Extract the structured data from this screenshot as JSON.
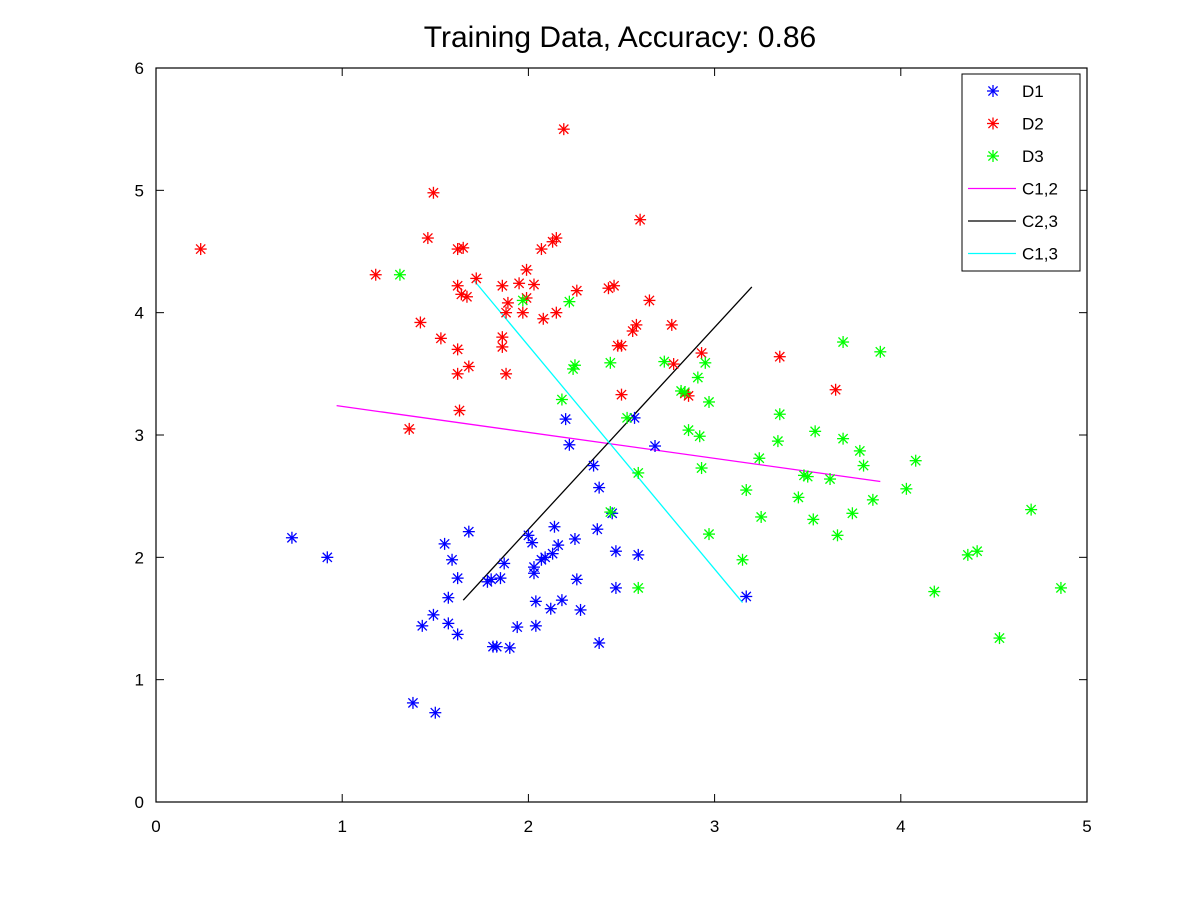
{
  "chart_data": {
    "type": "scatter",
    "title": "Training Data, Accuracy: 0.86",
    "xlabel": "",
    "ylabel": "",
    "xlim": [
      0,
      5
    ],
    "ylim": [
      0,
      6
    ],
    "xticks": [
      0,
      1,
      2,
      3,
      4,
      5
    ],
    "yticks": [
      0,
      1,
      2,
      3,
      4,
      5,
      6
    ],
    "grid": false,
    "legend_position": "top-right",
    "series": [
      {
        "name": "D1",
        "kind": "points",
        "marker": "asterisk",
        "color": "#0000ff",
        "points": [
          [
            0.73,
            2.16
          ],
          [
            0.92,
            2.0
          ],
          [
            1.38,
            0.81
          ],
          [
            1.43,
            1.44
          ],
          [
            1.5,
            0.73
          ],
          [
            1.49,
            1.53
          ],
          [
            1.55,
            2.11
          ],
          [
            1.57,
            1.67
          ],
          [
            1.57,
            1.46
          ],
          [
            1.59,
            1.98
          ],
          [
            1.62,
            1.83
          ],
          [
            1.62,
            1.37
          ],
          [
            1.68,
            2.21
          ],
          [
            1.78,
            1.8
          ],
          [
            1.8,
            1.82
          ],
          [
            1.81,
            1.27
          ],
          [
            1.83,
            1.27
          ],
          [
            1.85,
            1.83
          ],
          [
            1.87,
            1.95
          ],
          [
            1.9,
            1.26
          ],
          [
            1.94,
            1.43
          ],
          [
            2.0,
            2.18
          ],
          [
            2.02,
            2.12
          ],
          [
            2.03,
            1.92
          ],
          [
            2.03,
            1.87
          ],
          [
            2.04,
            1.64
          ],
          [
            2.04,
            1.44
          ],
          [
            2.07,
            1.98
          ],
          [
            2.09,
            2.0
          ],
          [
            2.12,
            1.58
          ],
          [
            2.13,
            2.03
          ],
          [
            2.14,
            2.25
          ],
          [
            2.16,
            2.1
          ],
          [
            2.18,
            1.65
          ],
          [
            2.2,
            3.13
          ],
          [
            2.22,
            2.92
          ],
          [
            2.25,
            2.15
          ],
          [
            2.26,
            1.82
          ],
          [
            2.28,
            1.57
          ],
          [
            2.35,
            2.75
          ],
          [
            2.37,
            2.23
          ],
          [
            2.38,
            2.57
          ],
          [
            2.38,
            1.3
          ],
          [
            2.45,
            2.36
          ],
          [
            2.47,
            2.05
          ],
          [
            2.47,
            1.75
          ],
          [
            2.57,
            3.14
          ],
          [
            2.59,
            2.02
          ],
          [
            2.68,
            2.91
          ],
          [
            3.17,
            1.68
          ]
        ]
      },
      {
        "name": "D2",
        "kind": "points",
        "marker": "asterisk",
        "color": "#ff0000",
        "points": [
          [
            0.24,
            4.52
          ],
          [
            1.18,
            4.31
          ],
          [
            1.36,
            3.05
          ],
          [
            1.42,
            3.92
          ],
          [
            1.46,
            4.61
          ],
          [
            1.49,
            4.98
          ],
          [
            1.53,
            3.79
          ],
          [
            1.62,
            4.52
          ],
          [
            1.62,
            4.22
          ],
          [
            1.62,
            3.7
          ],
          [
            1.62,
            3.5
          ],
          [
            1.63,
            3.2
          ],
          [
            1.64,
            4.15
          ],
          [
            1.65,
            4.53
          ],
          [
            1.67,
            4.13
          ],
          [
            1.68,
            3.56
          ],
          [
            1.72,
            4.28
          ],
          [
            1.86,
            4.22
          ],
          [
            1.86,
            3.8
          ],
          [
            1.86,
            3.72
          ],
          [
            1.88,
            4.0
          ],
          [
            1.88,
            3.5
          ],
          [
            1.89,
            4.08
          ],
          [
            1.95,
            4.24
          ],
          [
            1.97,
            4.0
          ],
          [
            1.99,
            4.12
          ],
          [
            1.99,
            4.35
          ],
          [
            2.03,
            4.23
          ],
          [
            2.07,
            4.52
          ],
          [
            2.08,
            3.95
          ],
          [
            2.13,
            4.58
          ],
          [
            2.15,
            4.61
          ],
          [
            2.15,
            4.0
          ],
          [
            2.19,
            5.5
          ],
          [
            2.26,
            4.18
          ],
          [
            2.43,
            4.2
          ],
          [
            2.46,
            4.22
          ],
          [
            2.48,
            3.73
          ],
          [
            2.5,
            3.73
          ],
          [
            2.5,
            3.33
          ],
          [
            2.56,
            3.85
          ],
          [
            2.58,
            3.9
          ],
          [
            2.6,
            4.76
          ],
          [
            2.65,
            4.1
          ],
          [
            2.77,
            3.9
          ],
          [
            2.78,
            3.58
          ],
          [
            2.84,
            3.34
          ],
          [
            2.86,
            3.32
          ],
          [
            2.93,
            3.67
          ],
          [
            3.35,
            3.64
          ],
          [
            3.65,
            3.37
          ]
        ]
      },
      {
        "name": "D3",
        "kind": "points",
        "marker": "asterisk",
        "color": "#00ff00",
        "points": [
          [
            1.31,
            4.31
          ],
          [
            1.97,
            4.1
          ],
          [
            2.18,
            3.29
          ],
          [
            2.22,
            4.09
          ],
          [
            2.24,
            3.54
          ],
          [
            2.25,
            3.57
          ],
          [
            2.44,
            3.59
          ],
          [
            2.44,
            2.37
          ],
          [
            2.53,
            3.14
          ],
          [
            2.59,
            2.69
          ],
          [
            2.59,
            1.75
          ],
          [
            2.73,
            3.6
          ],
          [
            2.82,
            3.36
          ],
          [
            2.84,
            3.35
          ],
          [
            2.86,
            3.04
          ],
          [
            2.91,
            3.47
          ],
          [
            2.92,
            2.99
          ],
          [
            2.93,
            2.73
          ],
          [
            2.95,
            3.59
          ],
          [
            2.97,
            3.27
          ],
          [
            2.97,
            2.19
          ],
          [
            3.15,
            1.98
          ],
          [
            3.17,
            2.55
          ],
          [
            3.24,
            2.81
          ],
          [
            3.25,
            2.33
          ],
          [
            3.34,
            2.95
          ],
          [
            3.35,
            3.17
          ],
          [
            3.45,
            2.49
          ],
          [
            3.48,
            2.67
          ],
          [
            3.5,
            2.66
          ],
          [
            3.53,
            2.31
          ],
          [
            3.54,
            3.03
          ],
          [
            3.62,
            2.64
          ],
          [
            3.66,
            2.18
          ],
          [
            3.69,
            3.76
          ],
          [
            3.69,
            2.97
          ],
          [
            3.74,
            2.36
          ],
          [
            3.78,
            2.87
          ],
          [
            3.8,
            2.75
          ],
          [
            3.85,
            2.47
          ],
          [
            3.89,
            3.68
          ],
          [
            4.03,
            2.56
          ],
          [
            4.08,
            2.79
          ],
          [
            4.18,
            1.72
          ],
          [
            4.36,
            2.02
          ],
          [
            4.41,
            2.05
          ],
          [
            4.53,
            1.34
          ],
          [
            4.7,
            2.39
          ],
          [
            4.86,
            1.75
          ]
        ]
      },
      {
        "name": "C1,2",
        "kind": "line",
        "color": "#ff00ff",
        "points": [
          [
            0.97,
            3.24
          ],
          [
            3.89,
            2.62
          ]
        ]
      },
      {
        "name": "C2,3",
        "kind": "line",
        "color": "#000000",
        "points": [
          [
            1.65,
            1.65
          ],
          [
            3.2,
            4.21
          ]
        ]
      },
      {
        "name": "C1,3",
        "kind": "line",
        "color": "#00ffff",
        "points": [
          [
            1.71,
            4.26
          ],
          [
            3.15,
            1.63
          ]
        ]
      }
    ]
  }
}
